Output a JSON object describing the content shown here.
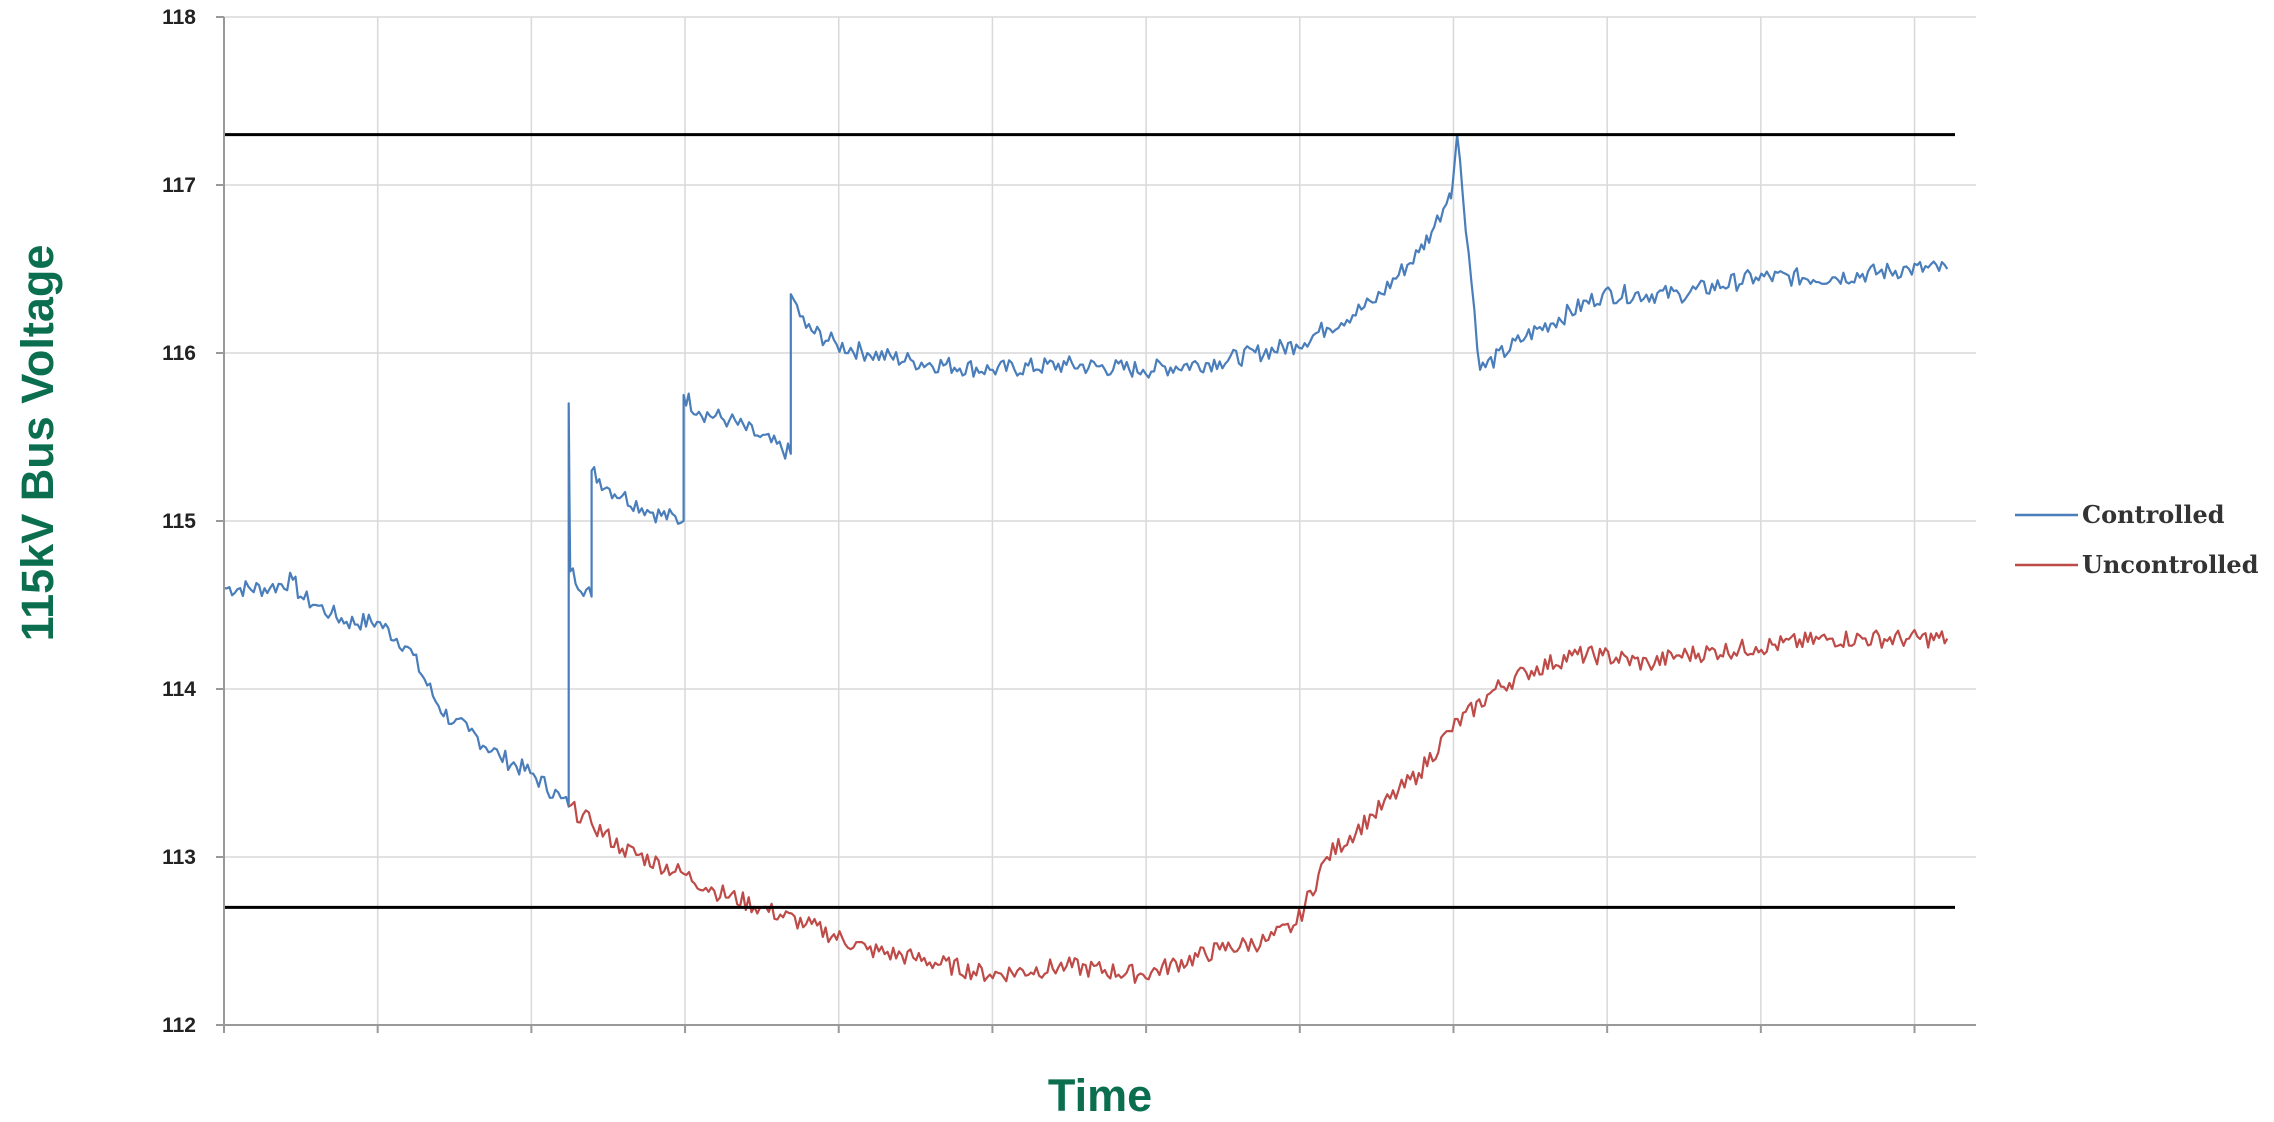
{
  "chart_data": {
    "type": "line",
    "title": "",
    "xlabel": "Time",
    "ylabel": "115kV Bus Voltage",
    "ylim": [
      112,
      118
    ],
    "yticks": [
      "112",
      "113",
      "114",
      "115",
      "116",
      "117",
      "118"
    ],
    "xlim": [
      0,
      11.3
    ],
    "grid": true,
    "legend_position": "right",
    "label_color": "#0b6e4f",
    "limit_lines": [
      {
        "value": 117.3,
        "color": "#000000"
      },
      {
        "value": 112.7,
        "color": "#000000"
      }
    ],
    "series": [
      {
        "name": "Controlled",
        "color": "#4a7ebb",
        "x": [
          0,
          0.3,
          0.45,
          0.5,
          0.6,
          0.7,
          0.8,
          1.0,
          1.2,
          1.4,
          1.5,
          1.6,
          1.8,
          2.0,
          2.2,
          2.25,
          2.25,
          2.26,
          2.4,
          2.4,
          2.5,
          2.6,
          2.8,
          3.0,
          3.0,
          3.1,
          3.3,
          3.5,
          3.7,
          3.7,
          3.8,
          4.0,
          4.2,
          4.5,
          5.0,
          5.5,
          6.0,
          6.5,
          7.0,
          7.2,
          7.5,
          7.8,
          7.9,
          8.0,
          8.02,
          8.05,
          8.2,
          8.5,
          9.0,
          9.5,
          10.0,
          10.5,
          11.0,
          11.25
        ],
        "values": [
          114.6,
          114.6,
          114.65,
          114.55,
          114.5,
          114.45,
          114.4,
          114.4,
          114.25,
          113.9,
          113.8,
          113.75,
          113.6,
          113.5,
          113.35,
          113.3,
          115.7,
          114.7,
          114.55,
          115.3,
          115.2,
          115.15,
          115.05,
          115.0,
          115.75,
          115.65,
          115.6,
          115.5,
          115.4,
          116.35,
          116.15,
          116.05,
          116.0,
          115.95,
          115.9,
          115.93,
          115.9,
          115.95,
          116.05,
          116.15,
          116.3,
          116.6,
          116.75,
          116.95,
          117.0,
          117.3,
          115.9,
          116.1,
          116.35,
          116.35,
          116.45,
          116.45,
          116.5,
          116.5
        ]
      },
      {
        "name": "Uncontrolled",
        "color": "#be4b48",
        "x": [
          2.25,
          2.4,
          2.6,
          3.0,
          3.2,
          3.5,
          3.8,
          4.2,
          4.5,
          5.0,
          5.5,
          6.0,
          6.5,
          6.8,
          7.0,
          7.2,
          7.5,
          7.8,
          8.0,
          8.3,
          8.5,
          8.8,
          9.0,
          9.3,
          9.5,
          10.0,
          10.5,
          11.0,
          11.25
        ],
        "values": [
          113.3,
          113.2,
          113.05,
          112.9,
          112.8,
          112.7,
          112.6,
          112.45,
          112.4,
          112.3,
          112.35,
          112.3,
          112.45,
          112.5,
          112.6,
          113.0,
          113.25,
          113.5,
          113.75,
          114.0,
          114.1,
          114.2,
          114.2,
          114.15,
          114.2,
          114.25,
          114.3,
          114.3,
          114.3
        ]
      }
    ]
  }
}
